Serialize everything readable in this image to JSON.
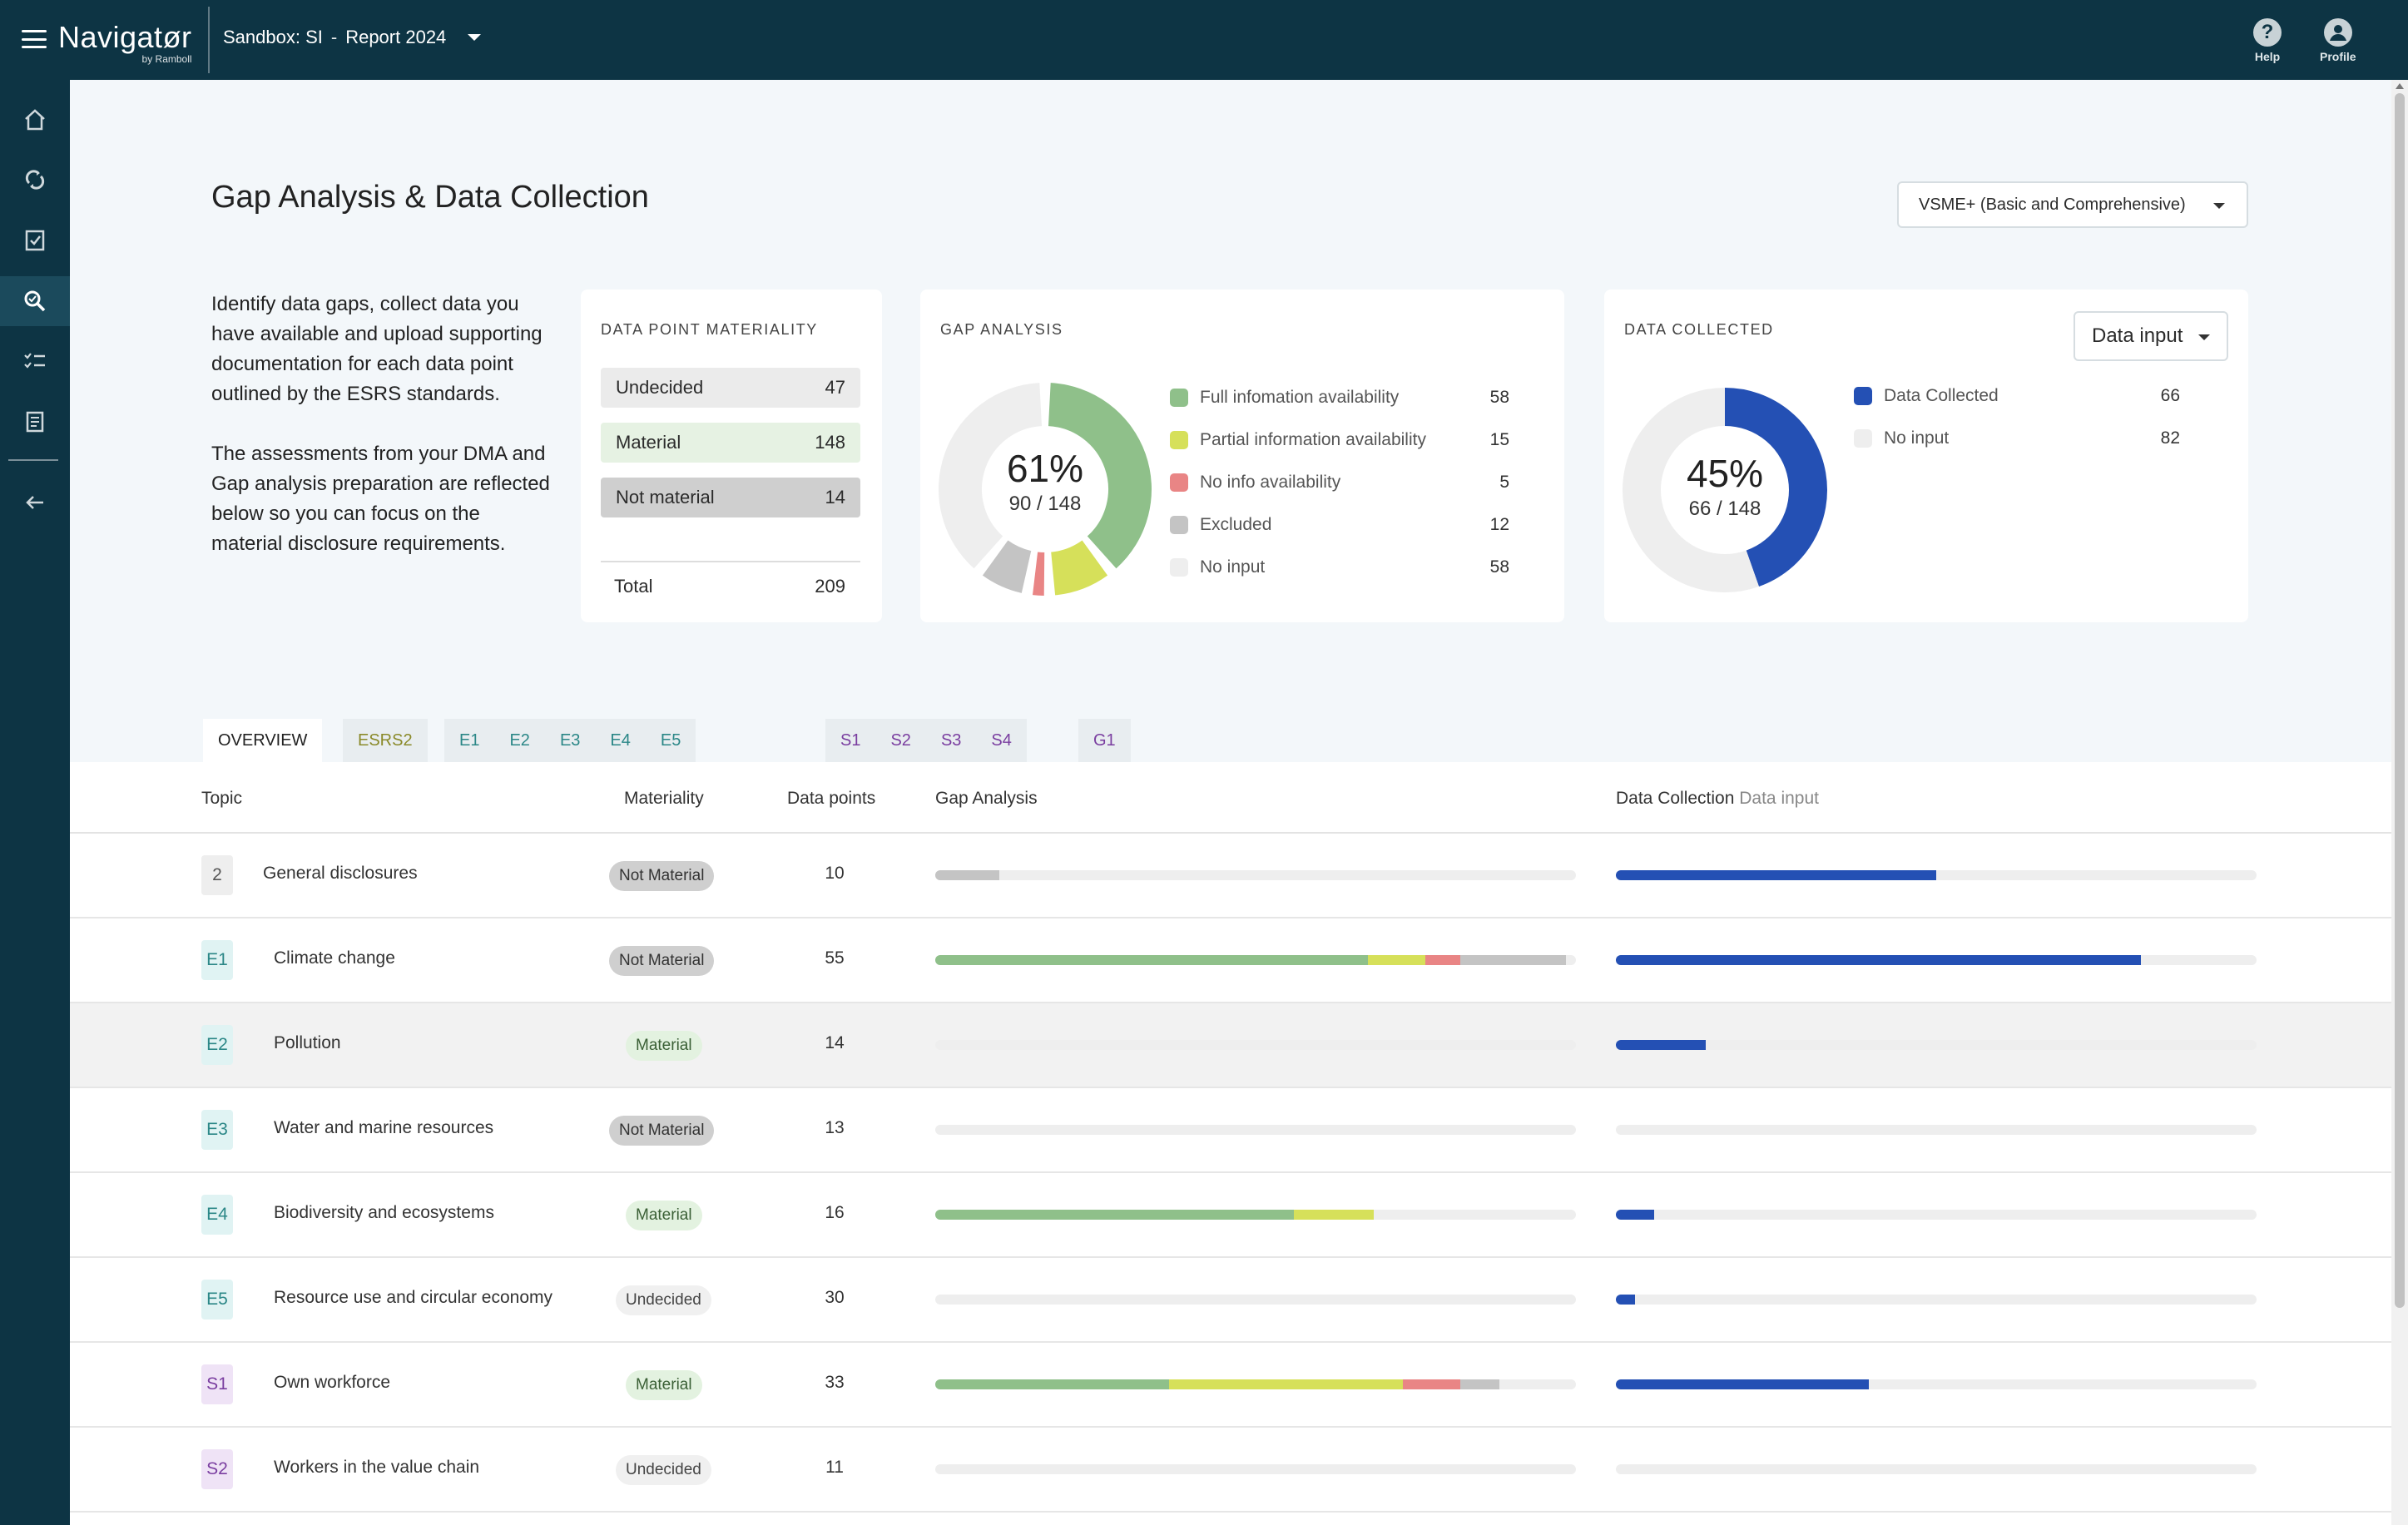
{
  "app": {
    "brand": "Navigatør",
    "brand_sub": "by Ramboll",
    "project": "Sandbox: SI",
    "separator": "-",
    "report": "Report 2024"
  },
  "top_actions": {
    "help": "Help",
    "profile": "Profile"
  },
  "sidebar": {
    "items": [
      "home-icon",
      "refresh-icon",
      "checkbox-icon",
      "search-data-icon",
      "checklist-icon",
      "report-icon",
      "back-arrow-icon"
    ]
  },
  "page": {
    "title": "Gap Analysis & Data Collection",
    "framework": "VSME+ (Basic and Comprehensive)",
    "intro_1": "Identify data gaps, collect data you have available and upload supporting documentation for each data point outlined by the ESRS standards.",
    "intro_2": "The assessments from your DMA and Gap analysis preparation are reflected below so you can focus on the material disclosure requirements."
  },
  "materiality": {
    "title": "DATA POINT MATERIALITY",
    "rows": [
      {
        "label": "Undecided",
        "value": "47"
      },
      {
        "label": "Material",
        "value": "148"
      },
      {
        "label": "Not material",
        "value": "14"
      }
    ],
    "total_label": "Total",
    "total_value": "209"
  },
  "gap_analysis": {
    "title": "GAP ANALYSIS",
    "percent": "61%",
    "fraction": "90 / 148",
    "legend": [
      {
        "label": "Full infomation availability",
        "value": 58,
        "color": "#8fc08a"
      },
      {
        "label": "Partial information availability",
        "value": 15,
        "color": "#d6e05a"
      },
      {
        "label": "No info availability",
        "value": 5,
        "color": "#e98585"
      },
      {
        "label": "Excluded",
        "value": 12,
        "color": "#c4c4c4"
      },
      {
        "label": "No input",
        "value": 58,
        "color": "#eeeeee"
      }
    ]
  },
  "data_collected": {
    "title": "DATA COLLECTED",
    "dropdown": "Data input",
    "percent": "45%",
    "fraction": "66 / 148",
    "legend": [
      {
        "label": "Data Collected",
        "value": 66,
        "color": "#2450b4"
      },
      {
        "label": "No input",
        "value": 82,
        "color": "#eeeeee"
      }
    ]
  },
  "tabs": [
    {
      "label": "OVERVIEW",
      "color": "#222222"
    },
    {
      "label": "ESRS2",
      "color": "#8a8a2a"
    },
    {
      "label": "E1",
      "color": "#2b8787"
    },
    {
      "label": "E2",
      "color": "#2b8787"
    },
    {
      "label": "E3",
      "color": "#2b8787"
    },
    {
      "label": "E4",
      "color": "#2b8787"
    },
    {
      "label": "E5",
      "color": "#2b8787"
    },
    {
      "label": "S1",
      "color": "#7a3ea0"
    },
    {
      "label": "S2",
      "color": "#7a3ea0"
    },
    {
      "label": "S3",
      "color": "#7a3ea0"
    },
    {
      "label": "S4",
      "color": "#7a3ea0"
    },
    {
      "label": "G1",
      "color": "#7a3ea0"
    }
  ],
  "table": {
    "headers": {
      "topic": "Topic",
      "materiality": "Materiality",
      "data_points": "Data points",
      "gap": "Gap Analysis",
      "collection": "Data Collection",
      "collection_sub": "Data input"
    },
    "rows": [
      {
        "code": "2",
        "group": "gen",
        "topic": "General disclosures",
        "materiality": "Not Material",
        "mat_type": "nm",
        "points": "10",
        "gap": [
          0,
          0,
          0,
          0.1
        ],
        "collected": 0.5
      },
      {
        "code": "E1",
        "group": "env",
        "topic": "Climate change",
        "materiality": "Not Material",
        "mat_type": "nm",
        "points": "55",
        "gap": [
          0.675,
          0.09,
          0.055,
          0.165
        ],
        "collected": 0.82
      },
      {
        "code": "E2",
        "group": "env",
        "topic": "Pollution",
        "materiality": "Material",
        "mat_type": "m",
        "points": "14",
        "gap": [
          0,
          0,
          0,
          0
        ],
        "collected": 0.14
      },
      {
        "code": "E3",
        "group": "env",
        "topic": "Water and marine resources",
        "materiality": "Not Material",
        "mat_type": "nm",
        "points": "13",
        "gap": [
          0,
          0,
          0,
          0
        ],
        "collected": 0
      },
      {
        "code": "E4",
        "group": "env",
        "topic": "Biodiversity and ecosystems",
        "materiality": "Material",
        "mat_type": "m",
        "points": "16",
        "gap": [
          0.56,
          0.125,
          0,
          0
        ],
        "collected": 0.06
      },
      {
        "code": "E5",
        "group": "env",
        "topic": "Resource use and circular economy",
        "materiality": "Undecided",
        "mat_type": "u",
        "points": "30",
        "gap": [
          0,
          0,
          0,
          0
        ],
        "collected": 0.03
      },
      {
        "code": "S1",
        "group": "soc",
        "topic": "Own workforce",
        "materiality": "Material",
        "mat_type": "m",
        "points": "33",
        "gap": [
          0.365,
          0.365,
          0.09,
          0.06
        ],
        "collected": 0.395
      },
      {
        "code": "S2",
        "group": "soc",
        "topic": "Workers in the value chain",
        "materiality": "Undecided",
        "mat_type": "u",
        "points": "11",
        "gap": [
          0,
          0,
          0,
          0
        ],
        "collected": 0
      }
    ]
  }
}
